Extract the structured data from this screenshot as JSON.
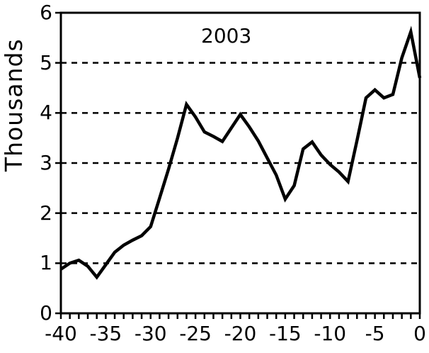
{
  "chart_data": {
    "type": "line",
    "title": "",
    "annotation": "2003",
    "xlabel": "",
    "ylabel": "Thousands",
    "x_range": [
      -40,
      0
    ],
    "y_range": [
      0,
      6
    ],
    "x_tick_labels": [
      "-40",
      "-35",
      "-30",
      "-25",
      "-20",
      "-15",
      "-10",
      "-5",
      "0"
    ],
    "x_tick_values": [
      -40,
      -35,
      -30,
      -25,
      -20,
      -15,
      -10,
      -5,
      0
    ],
    "x_minor_tick_step": 1,
    "y_tick_labels": [
      "0",
      "1",
      "2",
      "3",
      "4",
      "5",
      "6"
    ],
    "y_tick_values": [
      0,
      1,
      2,
      3,
      4,
      5,
      6
    ],
    "gridlines_y": [
      1,
      2,
      3,
      4,
      5
    ],
    "grid_style": "dashed",
    "legend_position": "none",
    "line_color": "#000000",
    "axis_color": "#000000",
    "background": "#ffffff",
    "series": [
      {
        "name": "2003",
        "x": [
          -40,
          -39,
          -38,
          -37,
          -36,
          -35,
          -34,
          -33,
          -32,
          -31,
          -30,
          -29,
          -28,
          -27,
          -26,
          -25,
          -24,
          -23,
          -22,
          -21,
          -20,
          -19,
          -18,
          -17,
          -16,
          -15,
          -14,
          -13,
          -12,
          -11,
          -10,
          -9,
          -8,
          -7,
          -6,
          -5,
          -4,
          -3,
          -2,
          -1,
          0
        ],
        "values": [
          0.88,
          1.0,
          1.06,
          0.94,
          0.72,
          0.97,
          1.22,
          1.36,
          1.46,
          1.55,
          1.73,
          2.3,
          2.88,
          3.5,
          4.17,
          3.92,
          3.62,
          3.53,
          3.43,
          3.7,
          3.97,
          3.72,
          3.44,
          3.1,
          2.76,
          2.28,
          2.55,
          3.28,
          3.42,
          3.16,
          2.97,
          2.82,
          2.63,
          3.45,
          4.3,
          4.46,
          4.3,
          4.37,
          5.1,
          5.62,
          4.7
        ]
      }
    ]
  }
}
